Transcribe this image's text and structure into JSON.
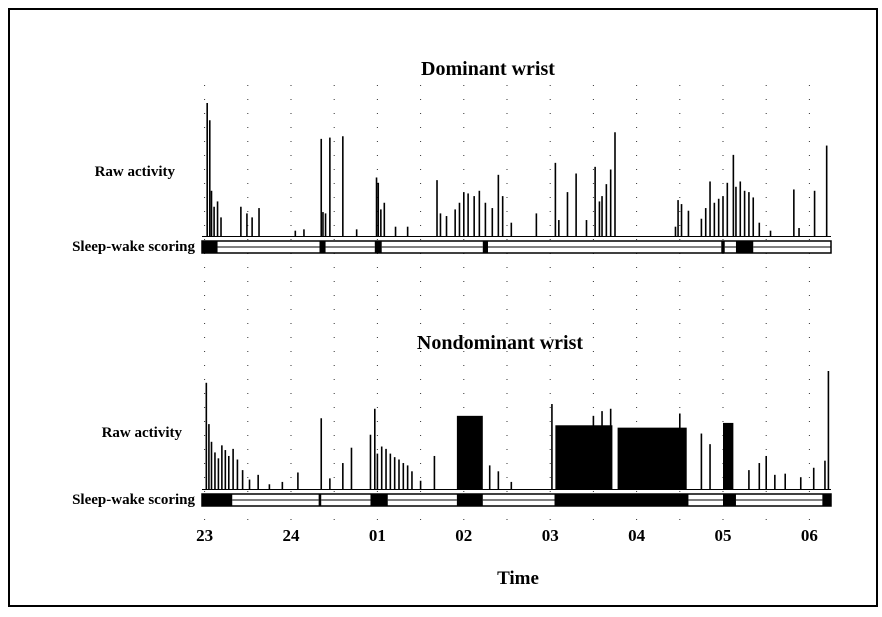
{
  "chart_data": {
    "type": "bar",
    "xlabel": "Time",
    "x_ticks": [
      "23",
      "24",
      "01",
      "02",
      "03",
      "04",
      "05",
      "06"
    ],
    "x_start_hour": 22.97,
    "x_end_hour": 30.25,
    "grid": "dotted vertical lines at half-hour intervals",
    "panels": [
      {
        "title": "Dominant wrist",
        "ylabel": "Raw activity",
        "scoring_label": "Sleep-wake scoring",
        "activity_spikes": [
          {
            "t": 23.03,
            "v": 1.0
          },
          {
            "t": 23.06,
            "v": 0.87
          },
          {
            "t": 23.08,
            "v": 0.34
          },
          {
            "t": 23.11,
            "v": 0.22
          },
          {
            "t": 23.15,
            "v": 0.26
          },
          {
            "t": 23.19,
            "v": 0.14
          },
          {
            "t": 23.42,
            "v": 0.22
          },
          {
            "t": 23.49,
            "v": 0.17
          },
          {
            "t": 23.55,
            "v": 0.14
          },
          {
            "t": 23.63,
            "v": 0.21
          },
          {
            "t": 24.05,
            "v": 0.04
          },
          {
            "t": 24.15,
            "v": 0.05
          },
          {
            "t": 24.35,
            "v": 0.73
          },
          {
            "t": 24.37,
            "v": 0.18
          },
          {
            "t": 24.4,
            "v": 0.17
          },
          {
            "t": 24.45,
            "v": 0.74
          },
          {
            "t": 24.6,
            "v": 0.75
          },
          {
            "t": 24.76,
            "v": 0.05
          },
          {
            "t": 24.99,
            "v": 0.44
          },
          {
            "t": 25.01,
            "v": 0.4
          },
          {
            "t": 25.04,
            "v": 0.2
          },
          {
            "t": 25.08,
            "v": 0.25
          },
          {
            "t": 25.21,
            "v": 0.07
          },
          {
            "t": 25.35,
            "v": 0.07
          },
          {
            "t": 25.69,
            "v": 0.42
          },
          {
            "t": 25.73,
            "v": 0.17
          },
          {
            "t": 25.8,
            "v": 0.15
          },
          {
            "t": 25.9,
            "v": 0.2
          },
          {
            "t": 25.95,
            "v": 0.25
          },
          {
            "t": 26.0,
            "v": 0.33
          },
          {
            "t": 26.05,
            "v": 0.32
          },
          {
            "t": 26.12,
            "v": 0.3
          },
          {
            "t": 26.18,
            "v": 0.34
          },
          {
            "t": 26.25,
            "v": 0.25
          },
          {
            "t": 26.33,
            "v": 0.21
          },
          {
            "t": 26.4,
            "v": 0.46
          },
          {
            "t": 26.45,
            "v": 0.3
          },
          {
            "t": 26.55,
            "v": 0.1
          },
          {
            "t": 26.84,
            "v": 0.17
          },
          {
            "t": 27.06,
            "v": 0.55
          },
          {
            "t": 27.1,
            "v": 0.12
          },
          {
            "t": 27.2,
            "v": 0.33
          },
          {
            "t": 27.3,
            "v": 0.47
          },
          {
            "t": 27.42,
            "v": 0.12
          },
          {
            "t": 27.52,
            "v": 0.52
          },
          {
            "t": 27.57,
            "v": 0.26
          },
          {
            "t": 27.6,
            "v": 0.3
          },
          {
            "t": 27.65,
            "v": 0.39
          },
          {
            "t": 27.7,
            "v": 0.5
          },
          {
            "t": 27.75,
            "v": 0.78
          },
          {
            "t": 28.45,
            "v": 0.07
          },
          {
            "t": 28.48,
            "v": 0.27
          },
          {
            "t": 28.52,
            "v": 0.24
          },
          {
            "t": 28.6,
            "v": 0.19
          },
          {
            "t": 28.75,
            "v": 0.13
          },
          {
            "t": 28.8,
            "v": 0.21
          },
          {
            "t": 28.85,
            "v": 0.41
          },
          {
            "t": 28.9,
            "v": 0.25
          },
          {
            "t": 28.95,
            "v": 0.28
          },
          {
            "t": 29.0,
            "v": 0.3
          },
          {
            "t": 29.05,
            "v": 0.4
          },
          {
            "t": 29.12,
            "v": 0.61
          },
          {
            "t": 29.15,
            "v": 0.37
          },
          {
            "t": 29.2,
            "v": 0.41
          },
          {
            "t": 29.25,
            "v": 0.34
          },
          {
            "t": 29.3,
            "v": 0.33
          },
          {
            "t": 29.35,
            "v": 0.29
          },
          {
            "t": 29.42,
            "v": 0.1
          },
          {
            "t": 29.55,
            "v": 0.04
          },
          {
            "t": 29.82,
            "v": 0.35
          },
          {
            "t": 29.88,
            "v": 0.06
          },
          {
            "t": 30.06,
            "v": 0.34
          },
          {
            "t": 30.2,
            "v": 0.68
          }
        ],
        "sleep_wake": [
          {
            "state": "wake",
            "start": 22.97,
            "end": 23.15
          },
          {
            "state": "sleep",
            "start": 23.15,
            "end": 24.33
          },
          {
            "state": "wake",
            "start": 24.33,
            "end": 24.4
          },
          {
            "state": "sleep",
            "start": 24.4,
            "end": 24.97
          },
          {
            "state": "wake",
            "start": 24.97,
            "end": 25.05
          },
          {
            "state": "sleep",
            "start": 25.05,
            "end": 26.22
          },
          {
            "state": "wake",
            "start": 26.22,
            "end": 26.28
          },
          {
            "state": "sleep",
            "start": 26.28,
            "end": 28.98
          },
          {
            "state": "wake",
            "start": 28.98,
            "end": 29.02
          },
          {
            "state": "sleep",
            "start": 29.02,
            "end": 29.15
          },
          {
            "state": "wake",
            "start": 29.15,
            "end": 29.35
          },
          {
            "state": "sleep",
            "start": 29.35,
            "end": 30.25
          }
        ]
      },
      {
        "title": "Nondominant wrist",
        "ylabel": "Raw activity",
        "scoring_label": "Sleep-wake scoring",
        "activity_spikes": [
          {
            "t": 23.02,
            "v": 0.9
          },
          {
            "t": 23.05,
            "v": 0.55
          },
          {
            "t": 23.08,
            "v": 0.4
          },
          {
            "t": 23.12,
            "v": 0.31
          },
          {
            "t": 23.16,
            "v": 0.26
          },
          {
            "t": 23.2,
            "v": 0.37
          },
          {
            "t": 23.24,
            "v": 0.33
          },
          {
            "t": 23.28,
            "v": 0.28
          },
          {
            "t": 23.33,
            "v": 0.34
          },
          {
            "t": 23.38,
            "v": 0.25
          },
          {
            "t": 23.44,
            "v": 0.16
          },
          {
            "t": 23.52,
            "v": 0.08
          },
          {
            "t": 23.62,
            "v": 0.12
          },
          {
            "t": 23.75,
            "v": 0.04
          },
          {
            "t": 23.9,
            "v": 0.06
          },
          {
            "t": 24.08,
            "v": 0.14
          },
          {
            "t": 24.35,
            "v": 0.6
          },
          {
            "t": 24.45,
            "v": 0.09
          },
          {
            "t": 24.6,
            "v": 0.22
          },
          {
            "t": 24.7,
            "v": 0.35
          },
          {
            "t": 24.92,
            "v": 0.46
          },
          {
            "t": 24.97,
            "v": 0.68
          },
          {
            "t": 25.0,
            "v": 0.3
          },
          {
            "t": 25.05,
            "v": 0.36
          },
          {
            "t": 25.1,
            "v": 0.34
          },
          {
            "t": 25.15,
            "v": 0.3
          },
          {
            "t": 25.2,
            "v": 0.27
          },
          {
            "t": 25.25,
            "v": 0.25
          },
          {
            "t": 25.3,
            "v": 0.22
          },
          {
            "t": 25.35,
            "v": 0.2
          },
          {
            "t": 25.4,
            "v": 0.15
          },
          {
            "t": 25.5,
            "v": 0.07
          },
          {
            "t": 25.66,
            "v": 0.28
          },
          {
            "t": 26.3,
            "v": 0.2
          },
          {
            "t": 26.4,
            "v": 0.15
          },
          {
            "t": 26.55,
            "v": 0.06
          },
          {
            "t": 27.02,
            "v": 0.72
          },
          {
            "t": 27.5,
            "v": 0.62
          },
          {
            "t": 27.6,
            "v": 0.66
          },
          {
            "t": 27.7,
            "v": 0.68
          },
          {
            "t": 28.5,
            "v": 0.64
          },
          {
            "t": 28.75,
            "v": 0.47
          },
          {
            "t": 28.85,
            "v": 0.38
          },
          {
            "t": 29.3,
            "v": 0.16
          },
          {
            "t": 29.42,
            "v": 0.22
          },
          {
            "t": 29.5,
            "v": 0.28
          },
          {
            "t": 29.6,
            "v": 0.12
          },
          {
            "t": 29.72,
            "v": 0.13
          },
          {
            "t": 29.9,
            "v": 0.1
          },
          {
            "t": 30.05,
            "v": 0.18
          },
          {
            "t": 30.18,
            "v": 0.24
          },
          {
            "t": 30.22,
            "v": 1.0
          }
        ],
        "activity_blocks": [
          {
            "start": 25.92,
            "end": 26.22,
            "v": 0.62
          },
          {
            "start": 27.06,
            "end": 27.72,
            "v": 0.54
          },
          {
            "start": 27.78,
            "end": 28.58,
            "v": 0.52
          },
          {
            "start": 29.0,
            "end": 29.12,
            "v": 0.56
          }
        ],
        "sleep_wake": [
          {
            "state": "wake",
            "start": 22.97,
            "end": 23.32
          },
          {
            "state": "sleep",
            "start": 23.32,
            "end": 24.32
          },
          {
            "state": "wake",
            "start": 24.32,
            "end": 24.35
          },
          {
            "state": "sleep",
            "start": 24.35,
            "end": 24.92
          },
          {
            "state": "wake",
            "start": 24.92,
            "end": 25.12
          },
          {
            "state": "sleep",
            "start": 25.12,
            "end": 25.92
          },
          {
            "state": "wake",
            "start": 25.92,
            "end": 26.22
          },
          {
            "state": "sleep",
            "start": 26.22,
            "end": 27.05
          },
          {
            "state": "wake",
            "start": 27.05,
            "end": 28.6
          },
          {
            "state": "sleep",
            "start": 28.6,
            "end": 29.0
          },
          {
            "state": "wake",
            "start": 29.0,
            "end": 29.15
          },
          {
            "state": "sleep",
            "start": 29.15,
            "end": 30.15
          },
          {
            "state": "wake",
            "start": 30.15,
            "end": 30.25
          }
        ]
      }
    ]
  }
}
